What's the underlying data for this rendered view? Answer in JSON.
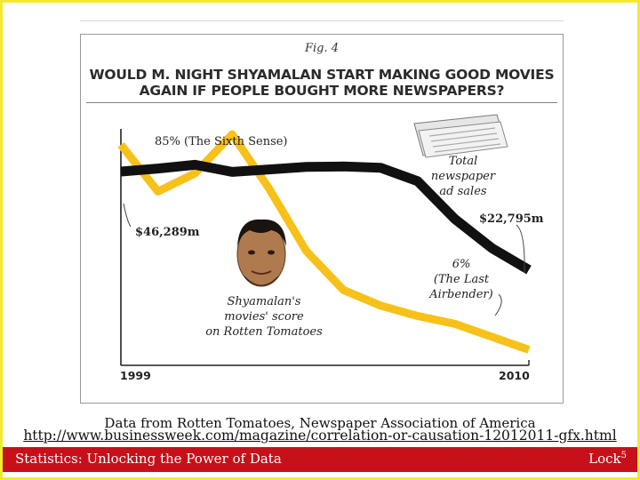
{
  "figure": {
    "label": "Fig. 4",
    "title_lines": [
      "WOULD M. NIGHT SHYAMALAN START MAKING GOOD MOVIES",
      "AGAIN IF PEOPLE BOUGHT MORE NEWSPAPERS?"
    ]
  },
  "chart_data": {
    "type": "line",
    "x": [
      1999,
      2000,
      2001,
      2002,
      2003,
      2004,
      2005,
      2006,
      2007,
      2008,
      2009,
      2010
    ],
    "xlabels": [
      "1999",
      "2010"
    ],
    "series": [
      {
        "name": "Shyamalan's movies' score on Rotten Tomatoes",
        "role": "score",
        "color": "#f7c11a",
        "values": [
          85,
          67,
          74,
          89,
          68,
          44,
          29,
          23,
          19,
          16,
          11,
          6
        ],
        "ylim": [
          0,
          100
        ]
      },
      {
        "name": "Total newspaper ad sales",
        "role": "ad-sales",
        "color": "#111111",
        "values": [
          46289,
          47000,
          47900,
          46200,
          46800,
          47400,
          47500,
          47200,
          44000,
          35000,
          28000,
          22795
        ],
        "ylim": [
          0,
          62000
        ]
      }
    ],
    "annotations": {
      "score_start": "85% (The Sixth Sense)",
      "score_end_lines": [
        "6%",
        "(The Last",
        "Airbender)"
      ],
      "score_label_lines": [
        "Shyamalan's",
        "movies' score",
        "on Rotten Tomatoes"
      ],
      "sales_start": "$46,289m",
      "sales_end": "$22,795m",
      "sales_label_lines": [
        "Total",
        "newspaper",
        "ad sales"
      ]
    }
  },
  "source": {
    "credit": "Data from Rotten Tomatoes, Newspaper Association of America",
    "url": "http://www.businessweek.com/magazine/correlation-or-causation-12012011-gfx.html"
  },
  "footer": {
    "left": "Statistics: Unlocking the Power of Data",
    "right": "Lock",
    "right_sup": "5"
  }
}
